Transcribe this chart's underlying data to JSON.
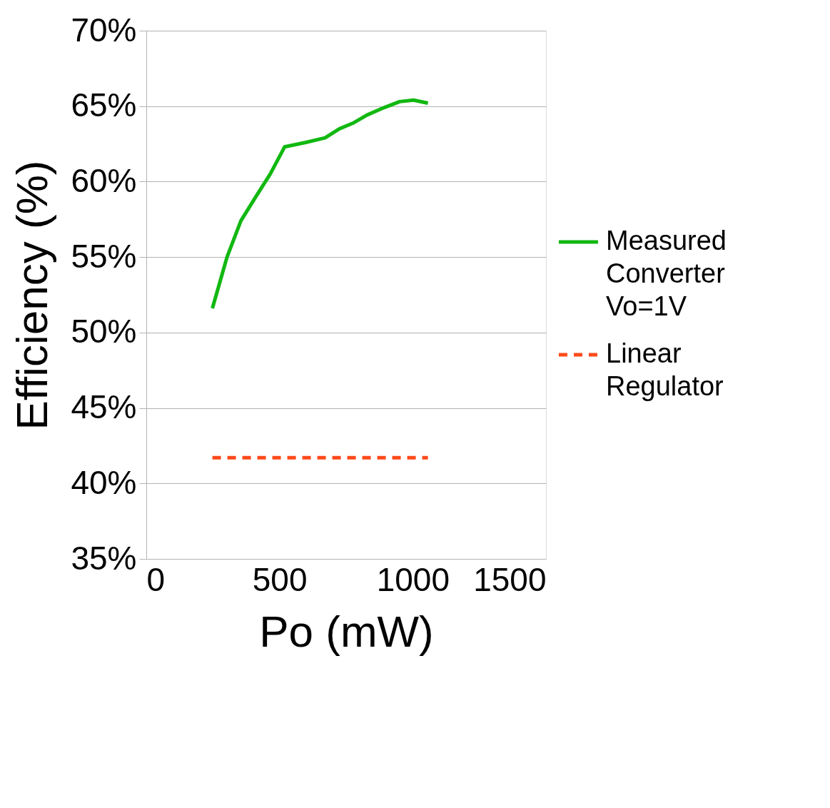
{
  "chart_data": {
    "type": "line",
    "xlabel": "Po (mW)",
    "ylabel": "Efficiency (%)",
    "xlim": [
      0,
      1500
    ],
    "xticks": [
      0,
      500,
      1000,
      1500
    ],
    "ylim": [
      35,
      70
    ],
    "yticks": [
      {
        "value": 35,
        "label": "35%"
      },
      {
        "value": 40,
        "label": "40%"
      },
      {
        "value": 45,
        "label": "45%"
      },
      {
        "value": 50,
        "label": "50%"
      },
      {
        "value": 55,
        "label": "55%"
      },
      {
        "value": 60,
        "label": "60%"
      },
      {
        "value": 65,
        "label": "65%"
      },
      {
        "value": 70,
        "label": "70%"
      }
    ],
    "grid": "y",
    "legend": "right",
    "marker": "none",
    "series": [
      {
        "name": "Measured Converter Vo=1V",
        "color": "#11b811",
        "line_style": "solid",
        "x": [
          248,
          303,
          355,
          411,
          465,
          519,
          599,
          671,
          725,
          779,
          827,
          892,
          951,
          1003,
          1057
        ],
        "values": [
          51.6,
          55.0,
          57.4,
          59.0,
          60.5,
          62.3,
          62.6,
          62.9,
          63.5,
          63.9,
          64.4,
          64.9,
          65.3,
          65.4,
          65.2
        ]
      },
      {
        "name": "Linear Regulator",
        "color": "#ff4a1a",
        "line_style": "dashed",
        "x": [
          248,
          1057
        ],
        "values": [
          41.7,
          41.7
        ]
      }
    ]
  }
}
